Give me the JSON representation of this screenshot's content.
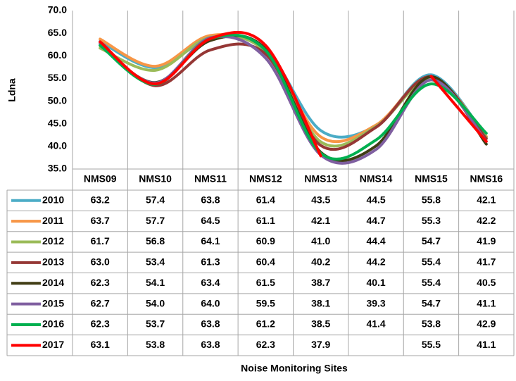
{
  "chart_data": {
    "type": "line",
    "y_label": "Ldna",
    "x_label": "Noise Monitoring Sites",
    "categories": [
      "NMS09",
      "NMS10",
      "NMS11",
      "NMS12",
      "NMS13",
      "NMS14",
      "NMS15",
      "NMS16"
    ],
    "ylim": [
      35,
      70
    ],
    "yticks": [
      {
        "value": 35,
        "label": "35.0"
      },
      {
        "value": 40,
        "label": "40.0"
      },
      {
        "value": 45,
        "label": "45.0"
      },
      {
        "value": 50,
        "label": "50.0"
      },
      {
        "value": 55,
        "label": "55.0"
      },
      {
        "value": 60,
        "label": "60.0"
      },
      {
        "value": 65,
        "label": "65.0"
      },
      {
        "value": 70,
        "label": "70.0"
      }
    ],
    "grid": false,
    "series": [
      {
        "name": "2010",
        "color": "#4bacc6",
        "values": [
          63.2,
          57.4,
          63.8,
          61.4,
          43.5,
          44.5,
          55.8,
          42.1
        ],
        "value_labels": [
          "63.2",
          "57.4",
          "63.8",
          "61.4",
          "43.5",
          "44.5",
          "55.8",
          "42.1"
        ]
      },
      {
        "name": "2011",
        "color": "#f79646",
        "values": [
          63.7,
          57.7,
          64.5,
          61.1,
          42.1,
          44.7,
          55.3,
          42.2
        ],
        "value_labels": [
          "63.7",
          "57.7",
          "64.5",
          "61.1",
          "42.1",
          "44.7",
          "55.3",
          "42.2"
        ]
      },
      {
        "name": "2012",
        "color": "#9bbb59",
        "values": [
          61.7,
          56.8,
          64.1,
          60.9,
          41.0,
          44.4,
          54.7,
          41.9
        ],
        "value_labels": [
          "61.7",
          "56.8",
          "64.1",
          "60.9",
          "41.0",
          "44.4",
          "54.7",
          "41.9"
        ]
      },
      {
        "name": "2013",
        "color": "#953735",
        "values": [
          63.0,
          53.4,
          61.3,
          60.4,
          40.2,
          44.2,
          55.4,
          41.7
        ],
        "value_labels": [
          "63.0",
          "53.4",
          "61.3",
          "60.4",
          "40.2",
          "44.2",
          "55.4",
          "41.7"
        ]
      },
      {
        "name": "2014",
        "color": "#403c14",
        "values": [
          62.3,
          54.1,
          63.4,
          61.5,
          38.7,
          40.1,
          55.4,
          40.5
        ],
        "value_labels": [
          "62.3",
          "54.1",
          "63.4",
          "61.5",
          "38.7",
          "40.1",
          "55.4",
          "40.5"
        ]
      },
      {
        "name": "2015",
        "color": "#7f5fa0",
        "values": [
          62.7,
          54.0,
          64.0,
          59.5,
          38.1,
          39.3,
          54.7,
          41.1
        ],
        "value_labels": [
          "62.7",
          "54.0",
          "64.0",
          "59.5",
          "38.1",
          "39.3",
          "54.7",
          "41.1"
        ]
      },
      {
        "name": "2016",
        "color": "#00b050",
        "values": [
          62.3,
          53.7,
          63.8,
          61.2,
          38.5,
          41.4,
          53.8,
          42.9
        ],
        "value_labels": [
          "62.3",
          "53.7",
          "63.8",
          "61.2",
          "38.5",
          "41.4",
          "53.8",
          "42.9"
        ]
      },
      {
        "name": "2017",
        "color": "#ff0000",
        "values": [
          63.1,
          53.8,
          63.8,
          62.3,
          37.9,
          null,
          55.5,
          41.1
        ],
        "value_labels": [
          "63.1",
          "53.8",
          "63.8",
          "62.3",
          "37.9",
          null,
          "55.5",
          "41.1"
        ]
      }
    ]
  }
}
